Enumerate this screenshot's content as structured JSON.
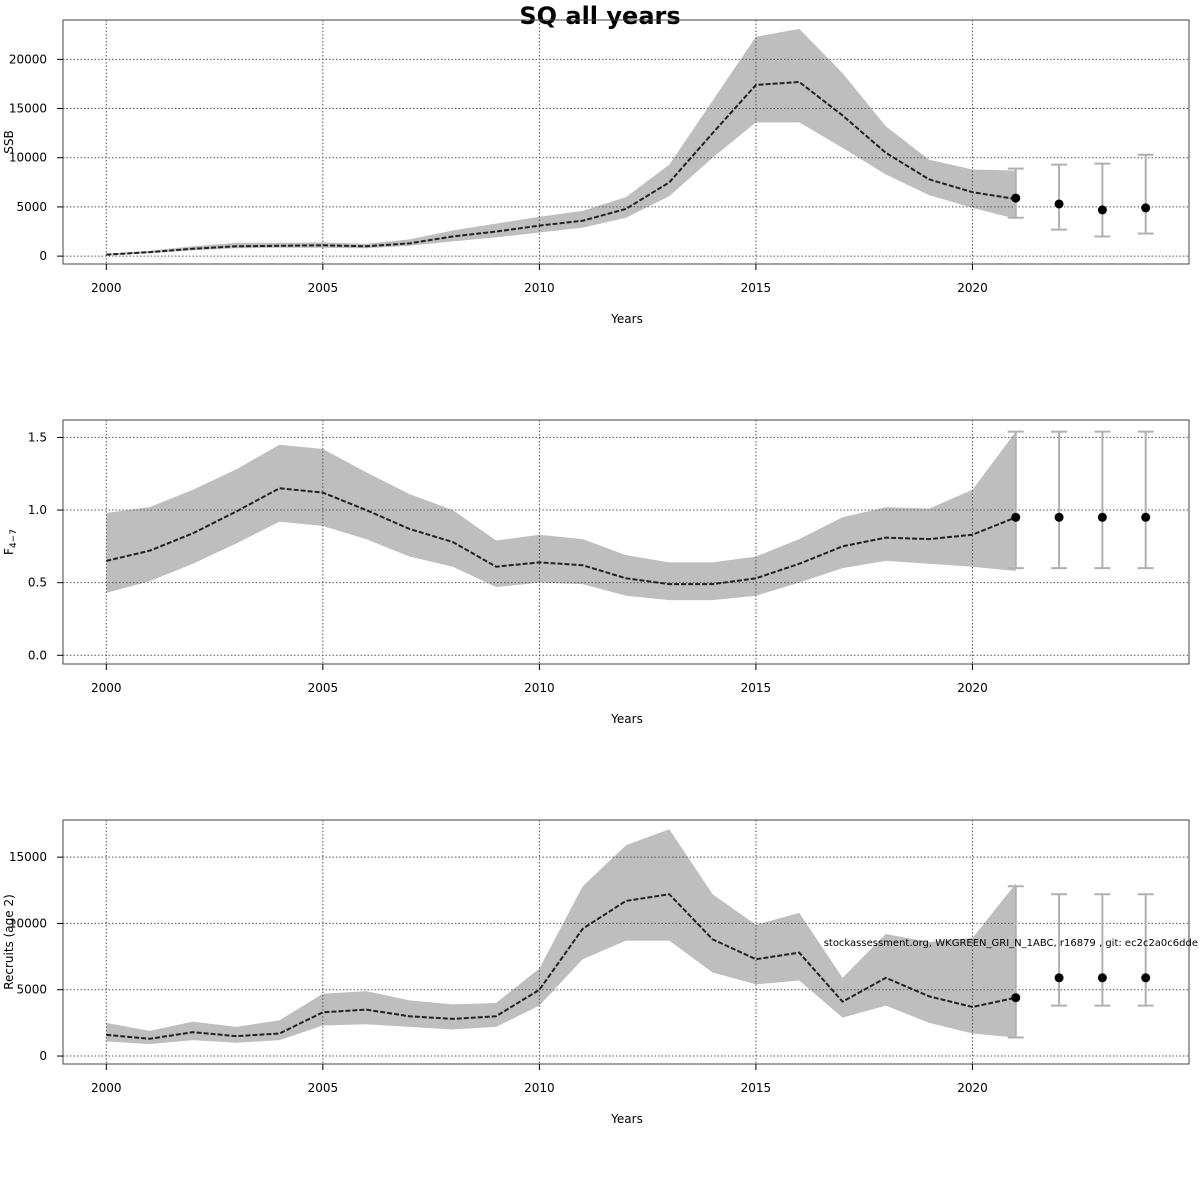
{
  "title": "SQ all years",
  "watermark": "stockassessment.org, WKGREEN_GRI_N_1ABC, r16879 , git: ec2c2a0c6dde",
  "colors": {
    "band": "#bebebe",
    "line": "#222222",
    "grid": "#555555",
    "errorbar": "#b0b0b0",
    "point": "#000000",
    "frame": "#444444"
  },
  "chart_data": [
    {
      "type": "line",
      "ylabel": "SSB",
      "xlabel": "Years",
      "xlim": [
        1999,
        2025
      ],
      "ylim": [
        -800,
        24000
      ],
      "xticks": [
        2000,
        2005,
        2010,
        2015,
        2020
      ],
      "yticks": [
        0,
        5000,
        10000,
        15000,
        20000
      ],
      "grid": true,
      "x": [
        2000,
        2001,
        2002,
        2003,
        2004,
        2005,
        2006,
        2007,
        2008,
        2009,
        2010,
        2011,
        2012,
        2013,
        2014,
        2015,
        2016,
        2017,
        2018,
        2019,
        2020,
        2021
      ],
      "y": [
        150,
        400,
        750,
        1000,
        1050,
        1100,
        1000,
        1300,
        2000,
        2500,
        3100,
        3600,
        4800,
        7500,
        12500,
        17400,
        17700,
        14300,
        10500,
        7800,
        6500,
        5800
      ],
      "lower": [
        100,
        300,
        600,
        800,
        850,
        850,
        800,
        1050,
        1500,
        1900,
        2400,
        2900,
        3900,
        6100,
        10000,
        13600,
        13600,
        11000,
        8300,
        6200,
        4900,
        3800
      ],
      "upper": [
        250,
        550,
        1000,
        1350,
        1350,
        1400,
        1250,
        1700,
        2600,
        3300,
        4000,
        4600,
        6000,
        9300,
        15800,
        22300,
        23100,
        18600,
        13200,
        9800,
        8800,
        8700
      ],
      "forecast": [
        {
          "x": 2021,
          "y": 5900,
          "low": 3900,
          "high": 8900
        },
        {
          "x": 2022,
          "y": 5300,
          "low": 2700,
          "high": 9300
        },
        {
          "x": 2023,
          "y": 4700,
          "low": 2000,
          "high": 9400
        },
        {
          "x": 2024,
          "y": 4900,
          "low": 2300,
          "high": 10300
        }
      ]
    },
    {
      "type": "line",
      "ylabel": "F4-7",
      "xlabel": "Years",
      "xlim": [
        1999,
        2025
      ],
      "ylim": [
        -0.06,
        1.62
      ],
      "xticks": [
        2000,
        2005,
        2010,
        2015,
        2020
      ],
      "yticks": [
        0.0,
        0.5,
        1.0,
        1.5
      ],
      "ytick_labels": [
        "0.0",
        "0.5",
        "1.0",
        "1.5"
      ],
      "grid": true,
      "x": [
        2000,
        2001,
        2002,
        2003,
        2004,
        2005,
        2006,
        2007,
        2008,
        2009,
        2010,
        2011,
        2012,
        2013,
        2014,
        2015,
        2016,
        2017,
        2018,
        2019,
        2020,
        2021
      ],
      "y": [
        0.65,
        0.72,
        0.84,
        0.99,
        1.15,
        1.12,
        1.0,
        0.87,
        0.78,
        0.61,
        0.64,
        0.62,
        0.53,
        0.49,
        0.49,
        0.53,
        0.63,
        0.75,
        0.81,
        0.8,
        0.83,
        0.95
      ],
      "lower": [
        0.43,
        0.51,
        0.63,
        0.77,
        0.92,
        0.89,
        0.8,
        0.68,
        0.61,
        0.47,
        0.5,
        0.49,
        0.41,
        0.38,
        0.38,
        0.41,
        0.5,
        0.6,
        0.65,
        0.63,
        0.61,
        0.58
      ],
      "upper": [
        0.98,
        1.02,
        1.14,
        1.28,
        1.45,
        1.42,
        1.26,
        1.11,
        1.0,
        0.79,
        0.83,
        0.8,
        0.69,
        0.64,
        0.64,
        0.68,
        0.8,
        0.95,
        1.02,
        1.01,
        1.14,
        1.54
      ],
      "forecast": [
        {
          "x": 2021,
          "y": 0.95,
          "low": 0.6,
          "high": 1.54
        },
        {
          "x": 2022,
          "y": 0.95,
          "low": 0.6,
          "high": 1.54
        },
        {
          "x": 2023,
          "y": 0.95,
          "low": 0.6,
          "high": 1.54
        },
        {
          "x": 2024,
          "y": 0.95,
          "low": 0.6,
          "high": 1.54
        }
      ]
    },
    {
      "type": "line",
      "ylabel": "Recruits (age 2)",
      "xlabel": "Years",
      "xlim": [
        1999,
        2025
      ],
      "ylim": [
        -600,
        17800
      ],
      "xticks": [
        2000,
        2005,
        2010,
        2015,
        2020
      ],
      "yticks": [
        0,
        5000,
        10000,
        15000
      ],
      "grid": true,
      "x": [
        2000,
        2001,
        2002,
        2003,
        2004,
        2005,
        2006,
        2007,
        2008,
        2009,
        2010,
        2011,
        2012,
        2013,
        2014,
        2015,
        2016,
        2017,
        2018,
        2019,
        2020,
        2021
      ],
      "y": [
        1600,
        1300,
        1800,
        1500,
        1700,
        3300,
        3500,
        3000,
        2800,
        3000,
        5000,
        9600,
        11700,
        12200,
        8800,
        7300,
        7800,
        4100,
        5900,
        4500,
        3700,
        4400
      ],
      "lower": [
        1100,
        900,
        1200,
        1000,
        1200,
        2300,
        2400,
        2200,
        2000,
        2200,
        3800,
        7300,
        8700,
        8700,
        6300,
        5400,
        5700,
        2900,
        3800,
        2500,
        1700,
        1400
      ],
      "upper": [
        2500,
        1900,
        2600,
        2200,
        2700,
        4700,
        4900,
        4200,
        3900,
        4000,
        6600,
        12800,
        15900,
        17100,
        12200,
        9900,
        10800,
        5900,
        9200,
        8600,
        8900,
        13000
      ],
      "forecast": [
        {
          "x": 2021,
          "y": 4400,
          "low": 1400,
          "high": 12800
        },
        {
          "x": 2022,
          "y": 5900,
          "low": 3800,
          "high": 12200
        },
        {
          "x": 2023,
          "y": 5900,
          "low": 3800,
          "high": 12200
        },
        {
          "x": 2024,
          "y": 5900,
          "low": 3800,
          "high": 12200
        }
      ]
    }
  ]
}
